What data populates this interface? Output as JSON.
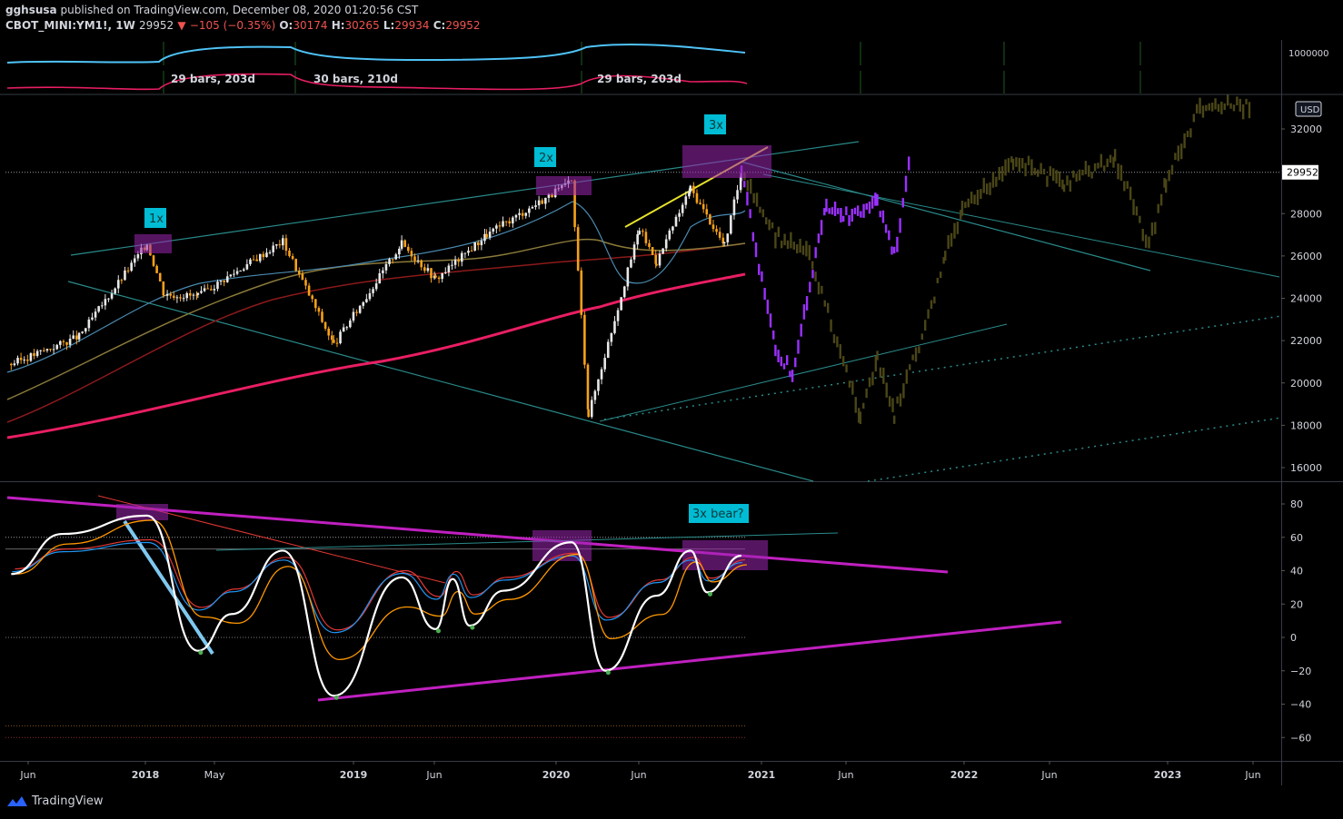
{
  "header": {
    "author": "gghsusa",
    "published_text": "published on TradingView.com, December 08, 2020 01:20:56 CST",
    "symbol": "CBOT_MINI:YM1!, 1W",
    "last": "29952",
    "change": "−105 (−0.35%)",
    "open_label": "O:",
    "open": "30174",
    "high_label": "H:",
    "high": "30265",
    "low_label": "L:",
    "low": "29934",
    "close_label": "C:",
    "close": "29952"
  },
  "footer": {
    "brand": "TradingView"
  },
  "colors": {
    "bull": "#e8e8e8",
    "bear": "#f7a11a",
    "projection_purple": "#9b30ff",
    "projection_olive": "#4a4617",
    "ma_pink": "#e91e63",
    "ma_darkred": "#8b1a1a",
    "ma_olive": "#8a7a3a",
    "ma_teal": "#4a8ab0",
    "channel": "#2a8a8a",
    "box": "#9c27b0",
    "label_bg": "#00bcd4",
    "osc_white": "#ffffff",
    "osc_orange": "#ff9800",
    "osc_blue": "#2196f3",
    "osc_red": "#e53935",
    "trend_magenta": "#c020c0"
  },
  "top_panel": {
    "axis_label": "1000000",
    "labels": [
      "29 bars, 203d",
      "30 bars, 210d",
      "29 bars, 203d"
    ]
  },
  "chart_data": [
    {
      "type": "candlestick",
      "currency": "USD",
      "last_price": 29952,
      "ylim": [
        15500,
        33500
      ],
      "yticks": [
        16000,
        18000,
        20000,
        22000,
        24000,
        26000,
        28000,
        30000,
        32000
      ],
      "ytick_labels": [
        "16000",
        "18000",
        "20000",
        "22000",
        "24000",
        "26000",
        "28000",
        "",
        "32000"
      ],
      "x_labels": [
        "Jun",
        "2018",
        "May",
        "2019",
        "Jun",
        "2020",
        "Jun",
        "2021",
        "Jun",
        "2022",
        "Jun",
        "2023",
        "Jun"
      ],
      "annotations": [
        "1x",
        "2x",
        "3x"
      ],
      "price_path": [
        {
          "date": "2017-05",
          "value": 20900
        },
        {
          "date": "2017-09",
          "value": 22200
        },
        {
          "date": "2018-01",
          "value": 26600
        },
        {
          "date": "2018-02",
          "value": 24200
        },
        {
          "date": "2018-04",
          "value": 24100
        },
        {
          "date": "2018-09",
          "value": 26700
        },
        {
          "date": "2018-12",
          "value": 21800
        },
        {
          "date": "2019-04",
          "value": 26600
        },
        {
          "date": "2019-06",
          "value": 24900
        },
        {
          "date": "2019-09",
          "value": 27000
        },
        {
          "date": "2020-02",
          "value": 29500
        },
        {
          "date": "2020-03",
          "value": 18500
        },
        {
          "date": "2020-06",
          "value": 27300
        },
        {
          "date": "2020-07",
          "value": 25700
        },
        {
          "date": "2020-09",
          "value": 29200
        },
        {
          "date": "2020-11",
          "value": 26500
        },
        {
          "date": "2020-12",
          "value": 29952
        }
      ],
      "projection_purple": [
        {
          "date": "2020-12",
          "value": 30000
        },
        {
          "date": "2021-02",
          "value": 21500
        },
        {
          "date": "2021-03",
          "value": 20500
        },
        {
          "date": "2021-05",
          "value": 28500
        },
        {
          "date": "2021-06",
          "value": 27800
        },
        {
          "date": "2021-08",
          "value": 28700
        },
        {
          "date": "2021-09",
          "value": 26000
        },
        {
          "date": "2021-10",
          "value": 30800
        }
      ]
    },
    {
      "type": "line",
      "ylim": [
        -70,
        92
      ],
      "yticks": [
        80,
        60,
        40,
        20,
        0,
        -20,
        -40,
        -60
      ],
      "ytick_labels": [
        "80",
        "60",
        "40",
        "20",
        "0",
        "−20",
        "−40",
        "−60"
      ],
      "annotations": [
        "3x bear?"
      ],
      "oscillator": [
        {
          "date": "2017-05",
          "value": 38
        },
        {
          "date": "2017-08",
          "value": 62
        },
        {
          "date": "2018-01",
          "value": 73
        },
        {
          "date": "2018-04",
          "value": -8
        },
        {
          "date": "2018-06",
          "value": 14
        },
        {
          "date": "2018-09",
          "value": 52
        },
        {
          "date": "2018-12",
          "value": -35
        },
        {
          "date": "2019-04",
          "value": 36
        },
        {
          "date": "2019-06",
          "value": 5
        },
        {
          "date": "2019-07",
          "value": 35
        },
        {
          "date": "2019-08",
          "value": 7
        },
        {
          "date": "2019-10",
          "value": 28
        },
        {
          "date": "2020-02",
          "value": 57
        },
        {
          "date": "2020-04",
          "value": -20
        },
        {
          "date": "2020-07",
          "value": 25
        },
        {
          "date": "2020-09",
          "value": 52
        },
        {
          "date": "2020-10",
          "value": 27
        },
        {
          "date": "2020-12",
          "value": 49
        }
      ]
    }
  ]
}
